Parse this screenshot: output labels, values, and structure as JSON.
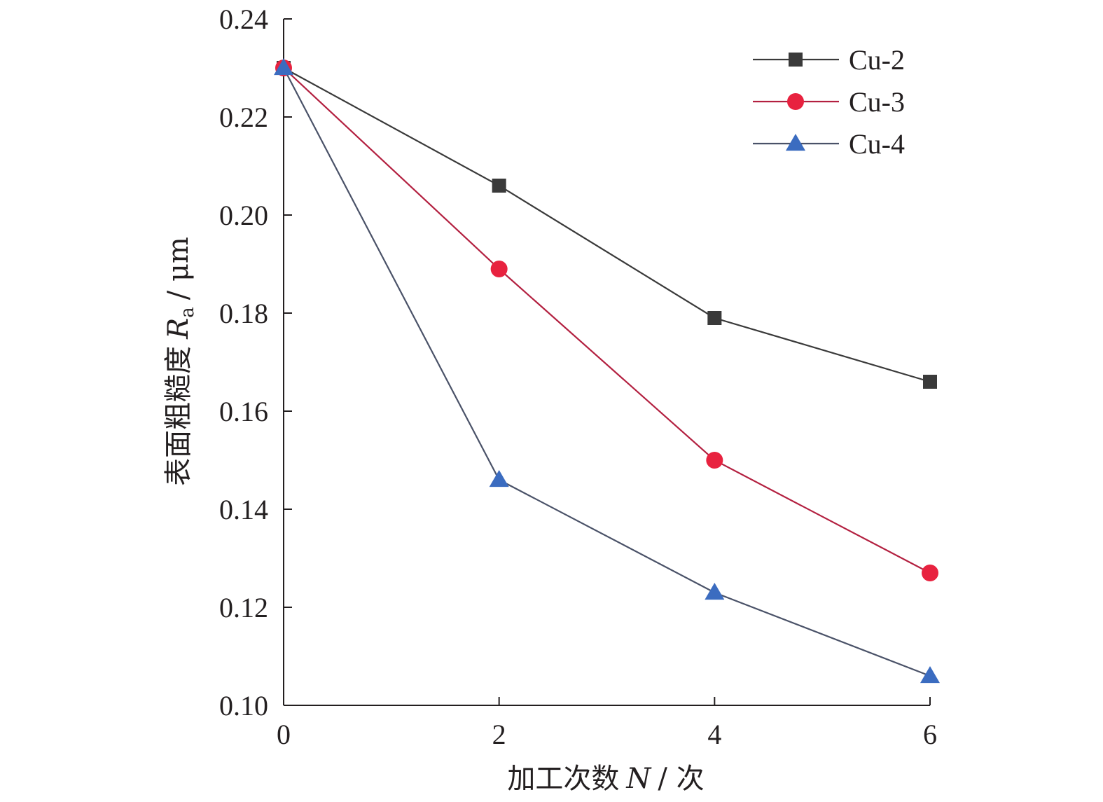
{
  "chart_data": {
    "type": "line",
    "xlabel": {
      "main": "加工次数",
      "italic": "N",
      "unit": "/ 次"
    },
    "ylabel": {
      "main": "表面粗糙度",
      "italic": "R",
      "subscript": "a",
      "unit": "/ μm"
    },
    "x": [
      0,
      2,
      4,
      6
    ],
    "xlim": [
      0,
      6
    ],
    "ylim": [
      0.1,
      0.24
    ],
    "xticks": [
      0,
      2,
      4,
      6
    ],
    "yticks": [
      0.1,
      0.12,
      0.14,
      0.16,
      0.18,
      0.2,
      0.22,
      0.24
    ],
    "x_tick_labels": [
      "0",
      "2",
      "4",
      "6"
    ],
    "y_tick_labels": [
      "0.10",
      "0.12",
      "0.14",
      "0.16",
      "0.18",
      "0.20",
      "0.22",
      "0.24"
    ],
    "grid": false,
    "legend_position": "top-right",
    "series": [
      {
        "name": "Cu-2",
        "marker": "square",
        "color": "#3a3a3a",
        "values": [
          0.23,
          0.206,
          0.179,
          0.166
        ]
      },
      {
        "name": "Cu-3",
        "marker": "circle",
        "color": "#e8223f",
        "line_color": "#b32040",
        "values": [
          0.23,
          0.189,
          0.15,
          0.127
        ]
      },
      {
        "name": "Cu-4",
        "marker": "triangle",
        "color": "#3b6cc0",
        "line_color": "#4a5268",
        "values": [
          0.23,
          0.146,
          0.123,
          0.106
        ]
      }
    ]
  }
}
